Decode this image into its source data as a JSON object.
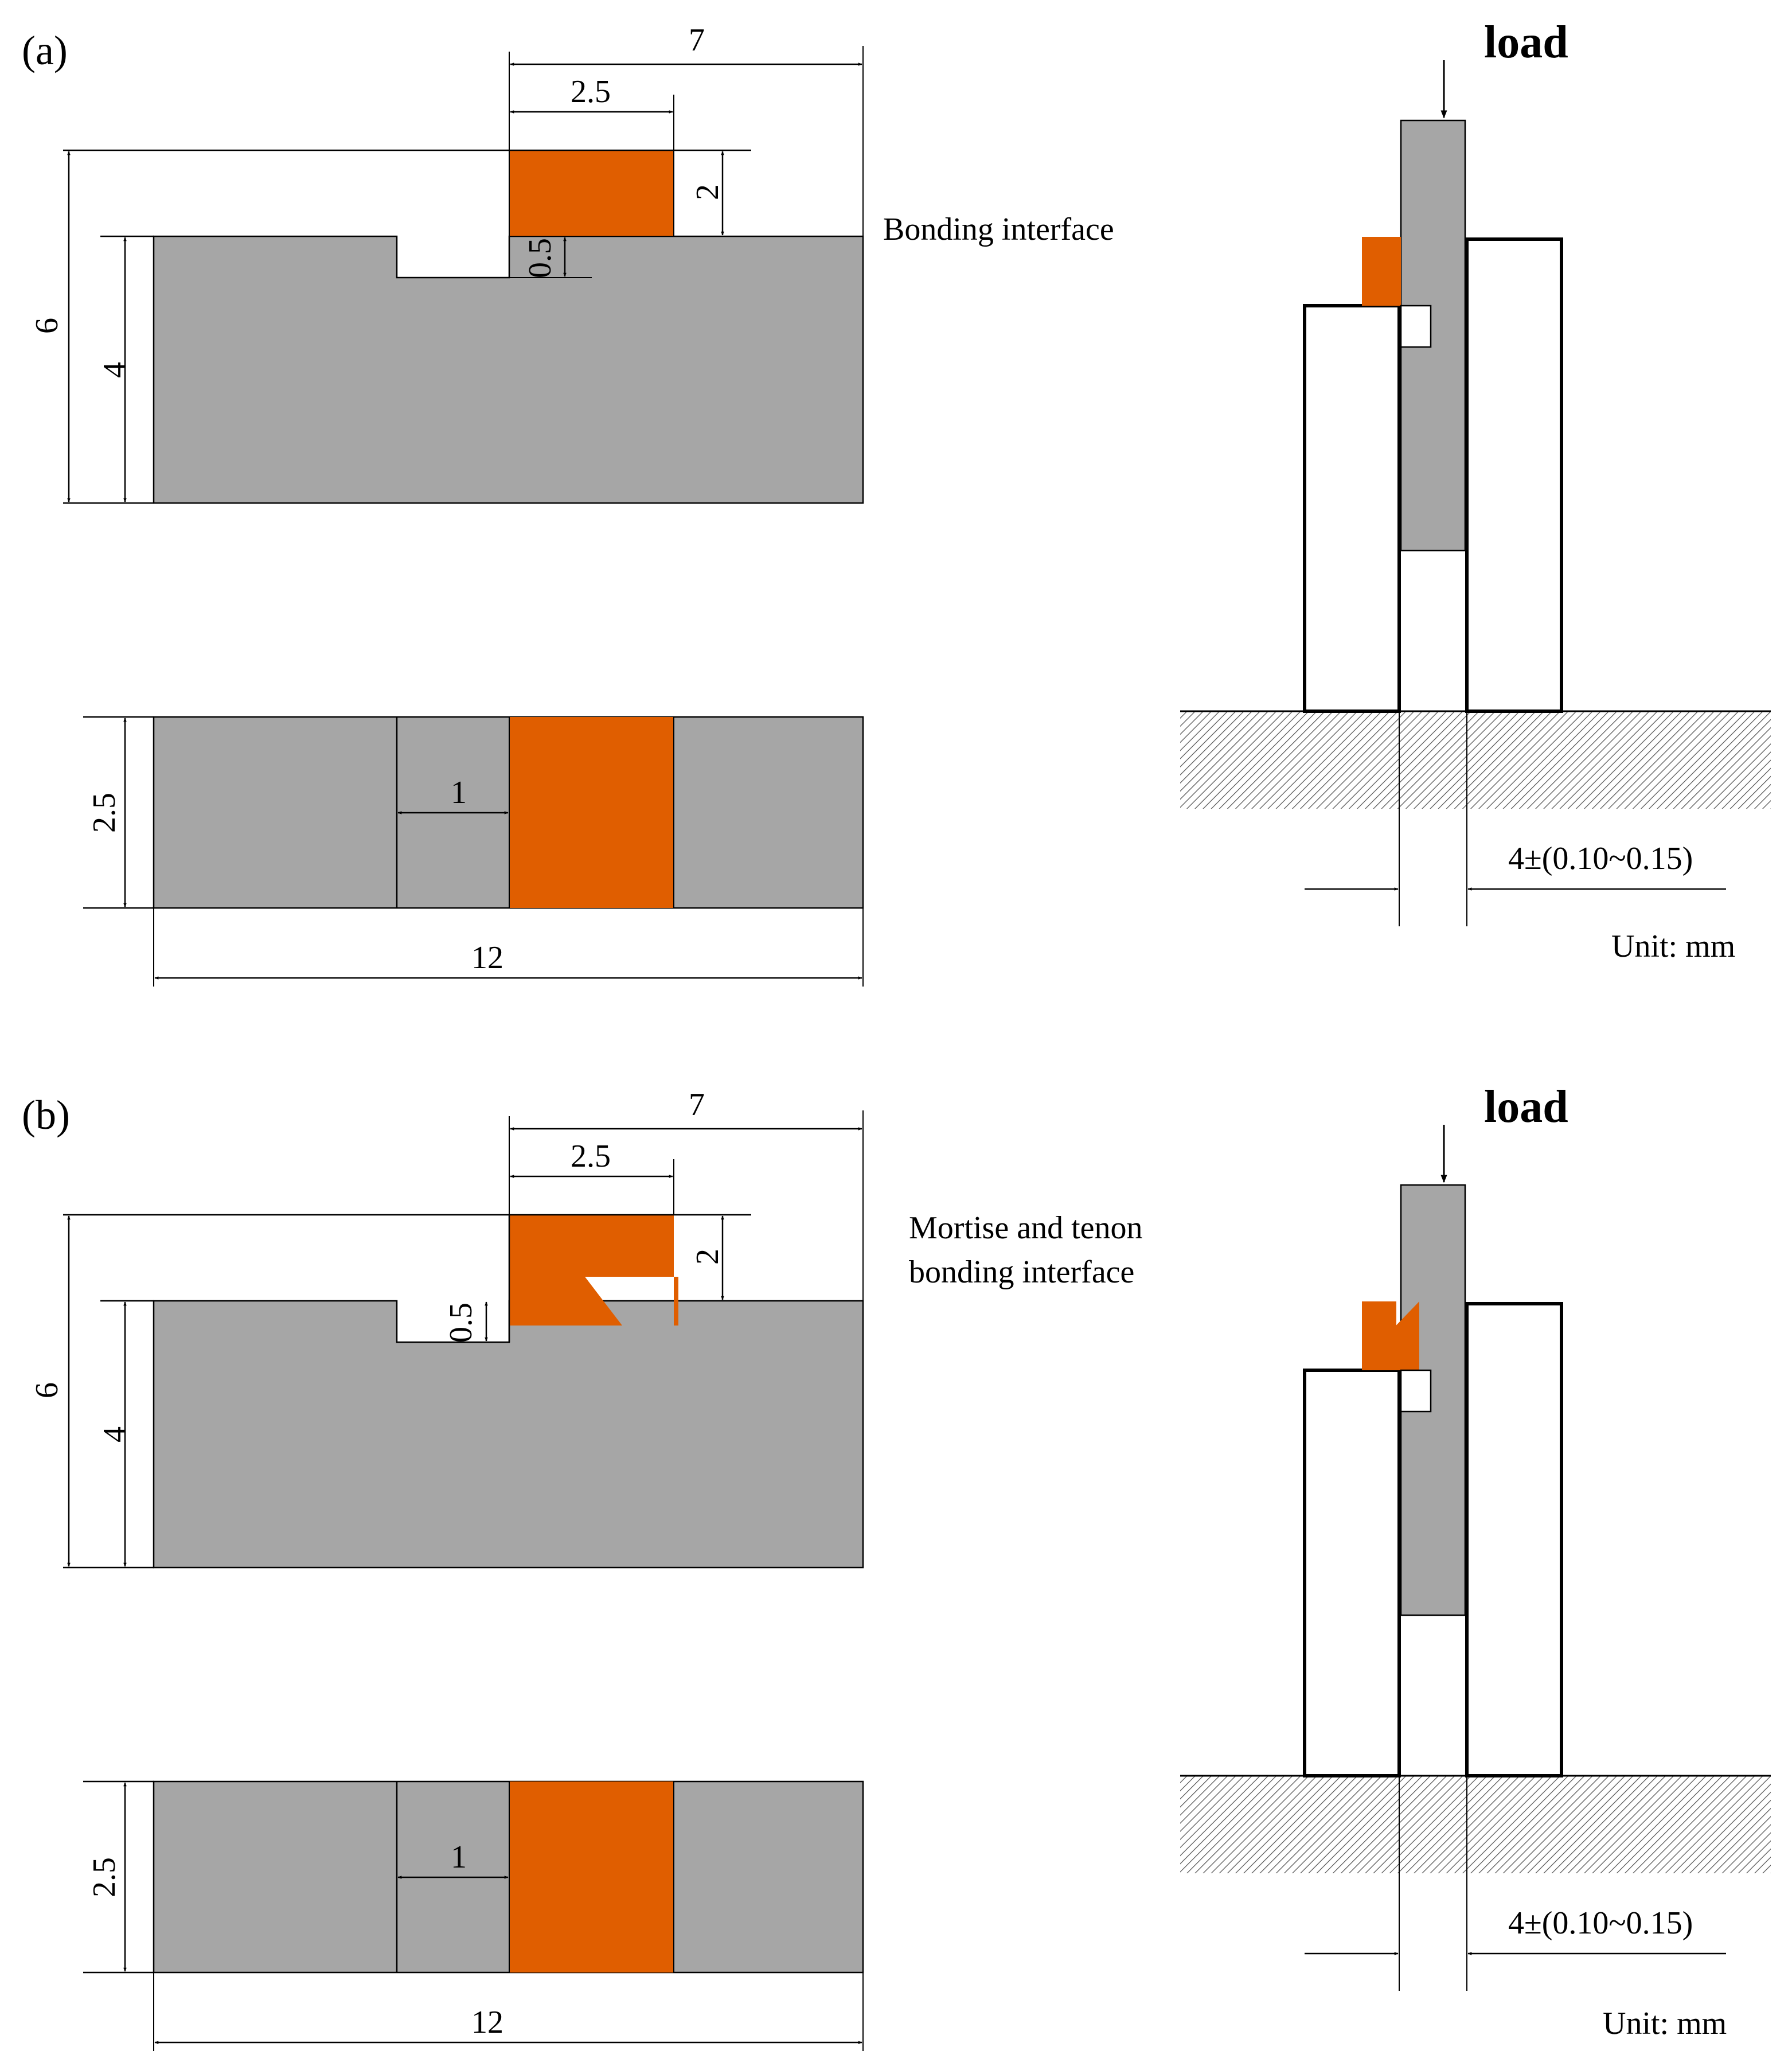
{
  "colors": {
    "specimen_gray": "#a6a6a6",
    "bond_orange": "#e05e00",
    "line": "#000000",
    "background": "#ffffff"
  },
  "panels": [
    {
      "label": "(a)",
      "side_view": {
        "dims": {
          "d7": "7",
          "d25": "2.5",
          "d2": "2",
          "d05": "0.5",
          "d6": "6",
          "d4": "4"
        }
      },
      "top_view": {
        "dims": {
          "d1": "1",
          "d25": "2.5",
          "d12": "12"
        }
      },
      "interface_label": [
        "Bonding interface"
      ],
      "fixture": {
        "load_label": "load",
        "gap_label": "4±(0.10~0.15)",
        "unit_label": "Unit: mm"
      }
    },
    {
      "label": "(b)",
      "side_view": {
        "dims": {
          "d7": "7",
          "d25": "2.5",
          "d2": "2",
          "d05": "0.5",
          "d6": "6",
          "d4": "4"
        }
      },
      "top_view": {
        "dims": {
          "d1": "1",
          "d25": "2.5",
          "d12": "12"
        }
      },
      "interface_label": [
        "Mortise and tenon",
        "bonding interface"
      ],
      "fixture": {
        "load_label": "load",
        "gap_label": "4±(0.10~0.15)",
        "unit_label": "Unit: mm"
      }
    }
  ]
}
